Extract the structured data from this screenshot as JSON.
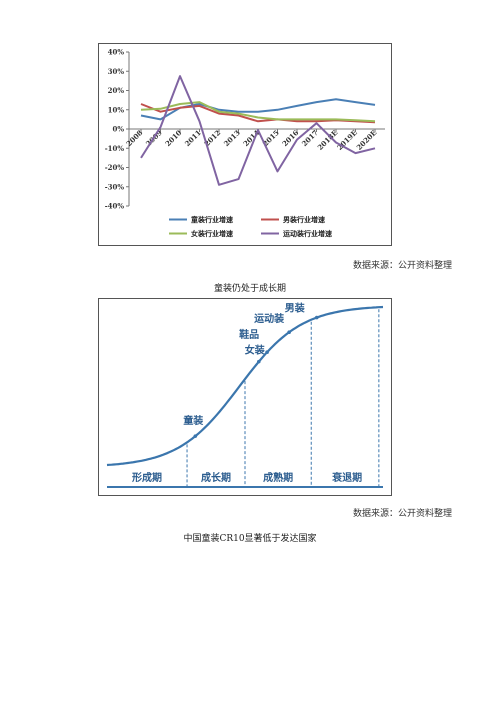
{
  "chart_data": [
    {
      "type": "line",
      "x": [
        "2008",
        "2009",
        "2010",
        "2011",
        "2012",
        "2013",
        "2014",
        "2015",
        "2016",
        "2017",
        "2018E",
        "2019E",
        "2020E"
      ],
      "ylim": [
        -40,
        40
      ],
      "yticks": [
        "40%",
        "30%",
        "20%",
        "10%",
        "0%",
        "-10%",
        "-20%",
        "-30%",
        "-40%"
      ],
      "ytick_values": [
        40,
        30,
        20,
        10,
        0,
        -10,
        -20,
        -30,
        -40
      ],
      "grid": false,
      "legend_position": "bottom",
      "series": [
        {
          "name": "童装行业增速",
          "color": "#4a7fb5",
          "values": [
            7,
            5,
            11,
            13,
            10,
            9,
            9,
            10,
            12,
            14,
            15.5,
            14,
            12.5
          ]
        },
        {
          "name": "男装行业增速",
          "color": "#c0504d",
          "values": [
            13,
            9,
            11,
            12,
            8,
            7,
            4,
            5,
            4,
            4,
            4.5,
            4,
            3.5
          ]
        },
        {
          "name": "女装行业增速",
          "color": "#9bbb59",
          "values": [
            10,
            10.5,
            13,
            14,
            9,
            8,
            6,
            5,
            5,
            5,
            5,
            4.5,
            4
          ]
        },
        {
          "name": "运动装行业增速",
          "color": "#8064a2",
          "values": [
            -15,
            1,
            27.5,
            4,
            -29,
            -26,
            -0.5,
            -22,
            -5.5,
            3,
            -7,
            -12.5,
            -10
          ]
        }
      ]
    },
    {
      "type": "line",
      "description_labels": true,
      "curve_labels": [
        "童装",
        "女装",
        "鞋品",
        "运动装",
        "男装"
      ],
      "curve_label_points": [
        0.32,
        0.55,
        0.58,
        0.66,
        0.76
      ],
      "phases": [
        "形成期",
        "成长期",
        "成熟期",
        "衰退期"
      ],
      "phase_bounds": [
        0.0,
        0.29,
        0.5,
        0.74,
        1.0
      ]
    }
  ],
  "source_text_1": "数据来源：公开资料整理",
  "source_text_2": "数据来源：公开资料整理",
  "caption_1": "童装仍处于成长期",
  "caption_2": "中国童装CR10显著低于发达国家"
}
